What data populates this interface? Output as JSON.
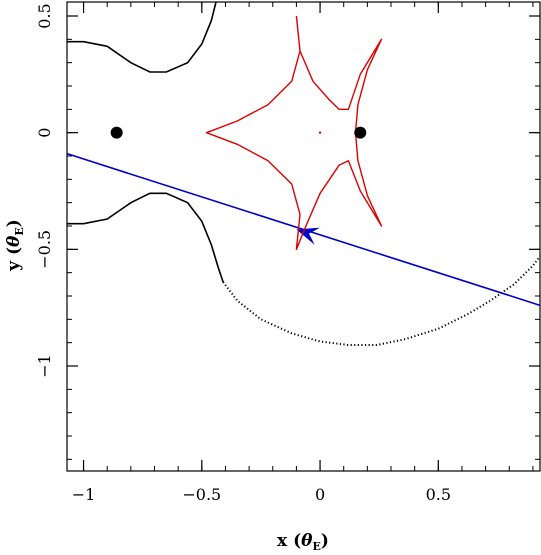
{
  "chart_data": {
    "type": "scatter",
    "title": "",
    "xlabel": {
      "prefix": "x (",
      "symbol": "θ",
      "subscript": "E",
      "suffix": ")"
    },
    "ylabel": {
      "prefix": "y (",
      "symbol": "θ",
      "subscript": "E",
      "suffix": ")"
    },
    "xlim": [
      -1.07,
      0.93
    ],
    "ylim": [
      -1.45,
      0.56
    ],
    "grid": false,
    "x_ticks": [
      {
        "value": -1,
        "label": "−1"
      },
      {
        "value": -0.5,
        "label": "−0.5"
      },
      {
        "value": 0,
        "label": "0"
      },
      {
        "value": 0.5,
        "label": "0.5"
      }
    ],
    "y_ticks": [
      {
        "value": 0.5,
        "label": "0.5"
      },
      {
        "value": 0,
        "label": "0"
      },
      {
        "value": -0.5,
        "label": "−0.5"
      },
      {
        "value": -1,
        "label": "−1"
      }
    ],
    "x_minor_step": 0.1,
    "y_minor_step": 0.1,
    "lens_masses": [
      {
        "x": -0.86,
        "y": 0.0
      },
      {
        "x": 0.17,
        "y": 0.0
      }
    ],
    "caustic": {
      "color": "#dd0000",
      "points": [
        [
          -0.1,
          0.5
        ],
        [
          -0.085,
          0.35
        ],
        [
          -0.03,
          0.22
        ],
        [
          0.04,
          0.14
        ],
        [
          0.08,
          0.1
        ],
        [
          0.12,
          0.1
        ],
        [
          0.17,
          0.25
        ],
        [
          0.26,
          0.4
        ],
        [
          0.2,
          0.27
        ],
        [
          0.16,
          0.12
        ],
        [
          0.15,
          0.0
        ],
        [
          0.16,
          -0.12
        ],
        [
          0.2,
          -0.27
        ],
        [
          0.26,
          -0.4
        ],
        [
          0.17,
          -0.25
        ],
        [
          0.12,
          -0.12
        ],
        [
          0.08,
          -0.14
        ],
        [
          0.0,
          -0.26
        ],
        [
          -0.06,
          -0.4
        ],
        [
          -0.1,
          -0.5
        ],
        [
          -0.085,
          -0.35
        ],
        [
          -0.12,
          -0.22
        ],
        [
          -0.22,
          -0.12
        ],
        [
          -0.35,
          -0.05
        ],
        [
          -0.48,
          0.0
        ],
        [
          -0.35,
          0.05
        ],
        [
          -0.22,
          0.12
        ],
        [
          -0.12,
          0.22
        ],
        [
          -0.085,
          0.35
        ],
        [
          -0.1,
          0.5
        ]
      ],
      "center_dot": {
        "x": 0.0,
        "y": 0.0
      }
    },
    "critical_curves": [
      {
        "style": "solid",
        "color": "#000000",
        "points": [
          [
            -1.07,
            0.39
          ],
          [
            -1.0,
            0.39
          ],
          [
            -0.9,
            0.37
          ],
          [
            -0.8,
            0.3
          ],
          [
            -0.72,
            0.26
          ],
          [
            -0.65,
            0.26
          ],
          [
            -0.56,
            0.3
          ],
          [
            -0.5,
            0.38
          ],
          [
            -0.46,
            0.48
          ],
          [
            -0.44,
            0.56
          ]
        ]
      },
      {
        "style": "solid",
        "color": "#000000",
        "points": [
          [
            -1.07,
            -0.39
          ],
          [
            -1.0,
            -0.39
          ],
          [
            -0.9,
            -0.37
          ],
          [
            -0.8,
            -0.3
          ],
          [
            -0.72,
            -0.26
          ],
          [
            -0.65,
            -0.26
          ],
          [
            -0.56,
            -0.3
          ],
          [
            -0.5,
            -0.38
          ],
          [
            -0.46,
            -0.48
          ],
          [
            -0.43,
            -0.58
          ],
          [
            -0.41,
            -0.64
          ]
        ]
      },
      {
        "style": "dotted",
        "color": "#000000",
        "points": [
          [
            -0.41,
            -0.64
          ],
          [
            -0.35,
            -0.72
          ],
          [
            -0.25,
            -0.8
          ],
          [
            -0.12,
            -0.86
          ],
          [
            0.0,
            -0.895
          ],
          [
            0.12,
            -0.91
          ],
          [
            0.24,
            -0.91
          ],
          [
            0.36,
            -0.885
          ],
          [
            0.5,
            -0.84
          ],
          [
            0.62,
            -0.78
          ],
          [
            0.72,
            -0.72
          ],
          [
            0.82,
            -0.65
          ],
          [
            0.9,
            -0.57
          ],
          [
            0.93,
            -0.53
          ]
        ]
      }
    ],
    "source_trajectory": {
      "color": "#0000cc",
      "points": [
        [
          -1.07,
          -0.09
        ],
        [
          0.93,
          -0.74
        ]
      ],
      "arrow": {
        "x": -0.1,
        "y": -0.415,
        "direction": "left"
      }
    }
  }
}
